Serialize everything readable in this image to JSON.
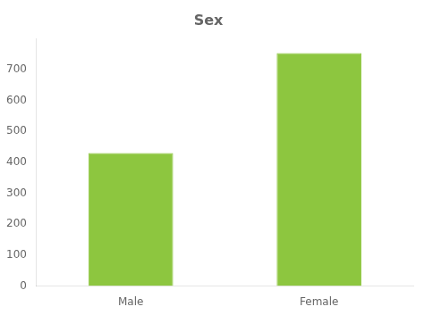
{
  "chart_data": {
    "type": "bar",
    "title": "Sex",
    "categories": [
      "Male",
      "Female"
    ],
    "values": [
      430,
      753
    ],
    "color": "#8dc63f",
    "ylim": [
      0,
      800
    ],
    "yticks": [
      0,
      100,
      200,
      300,
      400,
      500,
      600,
      700
    ],
    "grid": false
  }
}
